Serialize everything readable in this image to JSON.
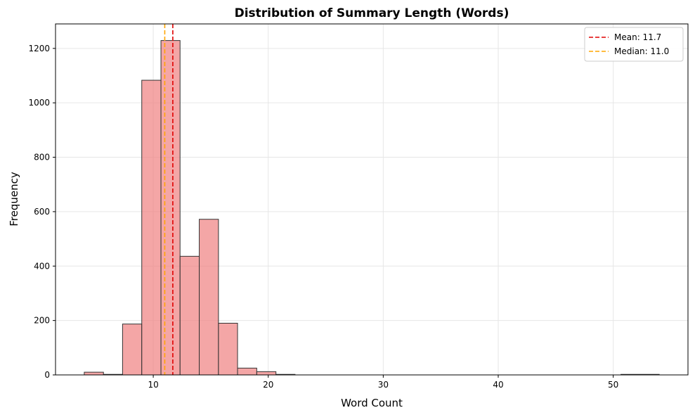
{
  "chart_data": {
    "type": "bar",
    "title": "Distribution of Summary Length (Words)",
    "xlabel": "Word Count",
    "ylabel": "Frequency",
    "xlim": [
      1.5,
      56.5
    ],
    "ylim": [
      0,
      1290
    ],
    "xticks": [
      10,
      20,
      30,
      40,
      50
    ],
    "yticks": [
      0,
      200,
      400,
      600,
      800,
      1000,
      1200
    ],
    "grid": true,
    "legend_position": "top-right",
    "bar_color": "#f08080",
    "bar_edge_color": "#333333",
    "bins": [
      {
        "x0": 4.0,
        "x1": 5.67,
        "count": 10
      },
      {
        "x0": 5.67,
        "x1": 7.33,
        "count": 2
      },
      {
        "x0": 7.33,
        "x1": 9.0,
        "count": 187
      },
      {
        "x0": 9.0,
        "x1": 10.67,
        "count": 1083
      },
      {
        "x0": 10.67,
        "x1": 12.33,
        "count": 1229
      },
      {
        "x0": 12.33,
        "x1": 14.0,
        "count": 436
      },
      {
        "x0": 14.0,
        "x1": 15.67,
        "count": 572
      },
      {
        "x0": 15.67,
        "x1": 17.33,
        "count": 190
      },
      {
        "x0": 17.33,
        "x1": 19.0,
        "count": 25
      },
      {
        "x0": 19.0,
        "x1": 20.67,
        "count": 12
      },
      {
        "x0": 20.67,
        "x1": 22.33,
        "count": 2
      },
      {
        "x0": 50.67,
        "x1": 54.0,
        "count": 2
      }
    ],
    "reference_lines": [
      {
        "name": "Mean: 11.7",
        "value": 11.7,
        "color": "#e00000"
      },
      {
        "name": "Median: 11.0",
        "value": 11.0,
        "color": "#ffa500"
      }
    ]
  }
}
